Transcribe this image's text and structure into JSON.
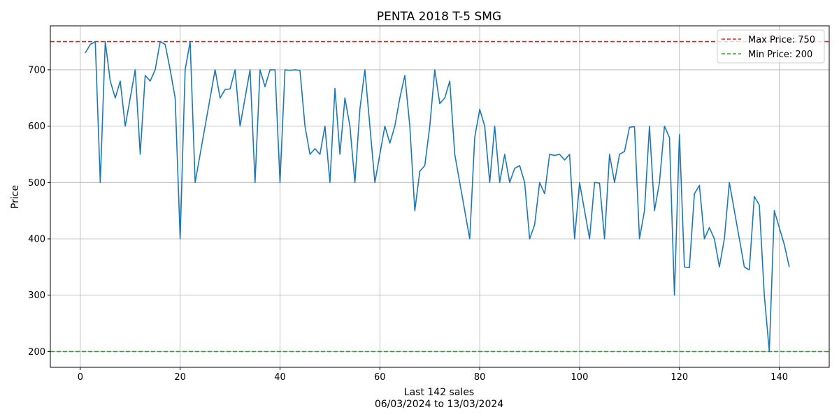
{
  "chart_data": {
    "type": "line",
    "title": "PENTA 2018 T-5 SMG",
    "xlabel": "Last 142 sales",
    "xlabel_sub": "06/03/2024 to 13/03/2024",
    "ylabel": "Price",
    "xlim": [
      -6,
      150
    ],
    "ylim": [
      172,
      778
    ],
    "x_ticks": [
      0,
      20,
      40,
      60,
      80,
      100,
      120,
      140
    ],
    "y_ticks": [
      200,
      300,
      400,
      500,
      600,
      700
    ],
    "grid": true,
    "legend_position": "top-right",
    "series": [
      {
        "color": "#1f77b4",
        "x": [
          1,
          2,
          3,
          4,
          5,
          6,
          7,
          8,
          9,
          10,
          11,
          12,
          13,
          14,
          15,
          16,
          17,
          18,
          19,
          20,
          21,
          22,
          23,
          24,
          25,
          26,
          27,
          28,
          29,
          30,
          31,
          32,
          33,
          34,
          35,
          36,
          37,
          38,
          39,
          40,
          41,
          42,
          43,
          44,
          45,
          46,
          47,
          48,
          49,
          50,
          51,
          52,
          53,
          54,
          55,
          56,
          57,
          58,
          59,
          60,
          61,
          62,
          63,
          64,
          65,
          66,
          67,
          68,
          69,
          70,
          71,
          72,
          73,
          74,
          75,
          76,
          77,
          78,
          79,
          80,
          81,
          82,
          83,
          84,
          85,
          86,
          87,
          88,
          89,
          90,
          91,
          92,
          93,
          94,
          95,
          96,
          97,
          98,
          99,
          100,
          101,
          102,
          103,
          104,
          105,
          106,
          107,
          108,
          109,
          110,
          111,
          112,
          113,
          114,
          115,
          116,
          117,
          118,
          119,
          120,
          121,
          122,
          123,
          124,
          125,
          126,
          127,
          128,
          129,
          130,
          131,
          132,
          133,
          134,
          135,
          136,
          137,
          138,
          139,
          140,
          141,
          142
        ],
        "values": [
          730,
          745,
          750,
          500,
          750,
          680,
          650,
          680,
          600,
          650,
          700,
          550,
          690,
          680,
          700,
          750,
          745,
          700,
          650,
          400,
          700,
          750,
          500,
          550,
          600,
          650,
          700,
          650,
          665,
          666,
          700,
          600,
          650,
          700,
          500,
          700,
          670,
          700,
          700,
          500,
          700,
          699,
          700,
          699,
          600,
          550,
          560,
          550,
          600,
          500,
          667,
          550,
          650,
          600,
          500,
          630,
          700,
          600,
          500,
          550,
          600,
          570,
          600,
          650,
          690,
          600,
          450,
          520,
          530,
          600,
          700,
          640,
          650,
          680,
          550,
          500,
          450,
          400,
          580,
          630,
          600,
          500,
          600,
          500,
          550,
          500,
          525,
          530,
          500,
          400,
          425,
          500,
          480,
          550,
          548,
          550,
          540,
          550,
          400,
          500,
          450,
          400,
          500,
          499,
          400,
          550,
          500,
          550,
          555,
          598,
          599,
          400,
          450,
          600,
          450,
          500,
          600,
          580,
          300,
          585,
          350,
          349,
          480,
          495,
          400,
          420,
          400,
          350,
          400,
          500,
          450,
          400,
          350,
          345,
          475,
          460,
          300,
          200,
          450,
          420,
          390,
          350
        ]
      }
    ],
    "reference_lines": [
      {
        "label": "Max Price: 750",
        "value": 750,
        "color": "#d62728",
        "style": "dashed"
      },
      {
        "label": "Min Price: 200",
        "value": 200,
        "color": "#2ca02c",
        "style": "dashed"
      }
    ]
  }
}
